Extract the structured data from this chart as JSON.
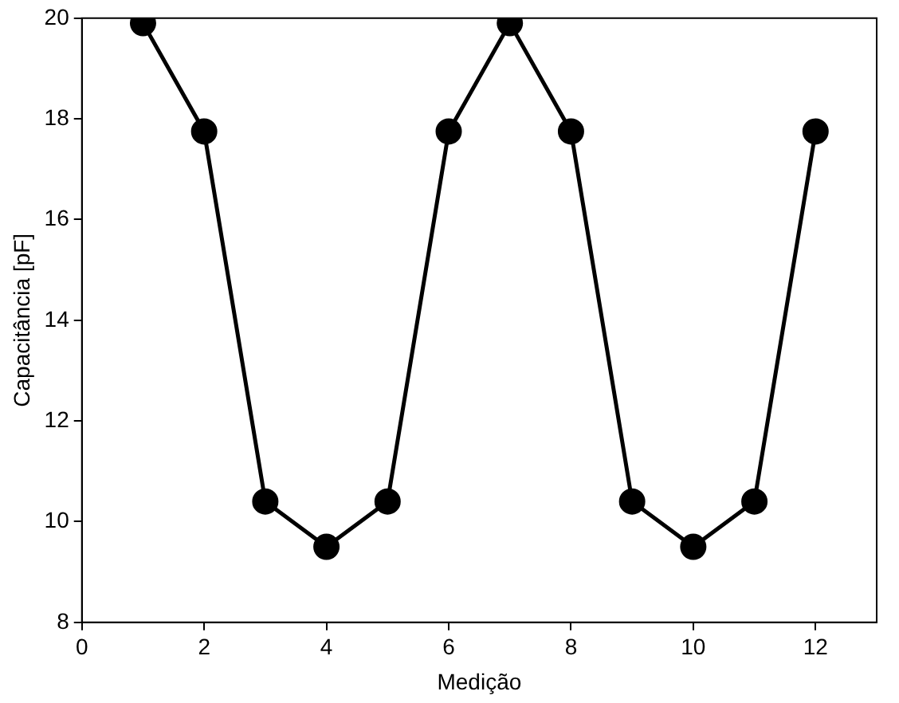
{
  "chart_data": {
    "type": "line",
    "xlabel": "Medição",
    "ylabel": "Capacitância [pF]",
    "x": [
      1,
      2,
      3,
      4,
      5,
      6,
      7,
      8,
      9,
      10,
      11,
      12
    ],
    "series": [
      {
        "color": "#000000",
        "values": [
          19.9,
          17.75,
          10.4,
          9.5,
          10.4,
          17.75,
          19.9,
          17.75,
          10.4,
          9.5,
          10.4,
          17.75
        ]
      }
    ],
    "xlim": [
      0,
      13
    ],
    "xticks": [
      0,
      2,
      4,
      6,
      8,
      10,
      12
    ],
    "ylim": [
      8,
      20
    ],
    "yticks": [
      8,
      10,
      12,
      14,
      16,
      18,
      20
    ],
    "grid": false,
    "legend": false,
    "marker": "circle",
    "line_style": "solid"
  }
}
